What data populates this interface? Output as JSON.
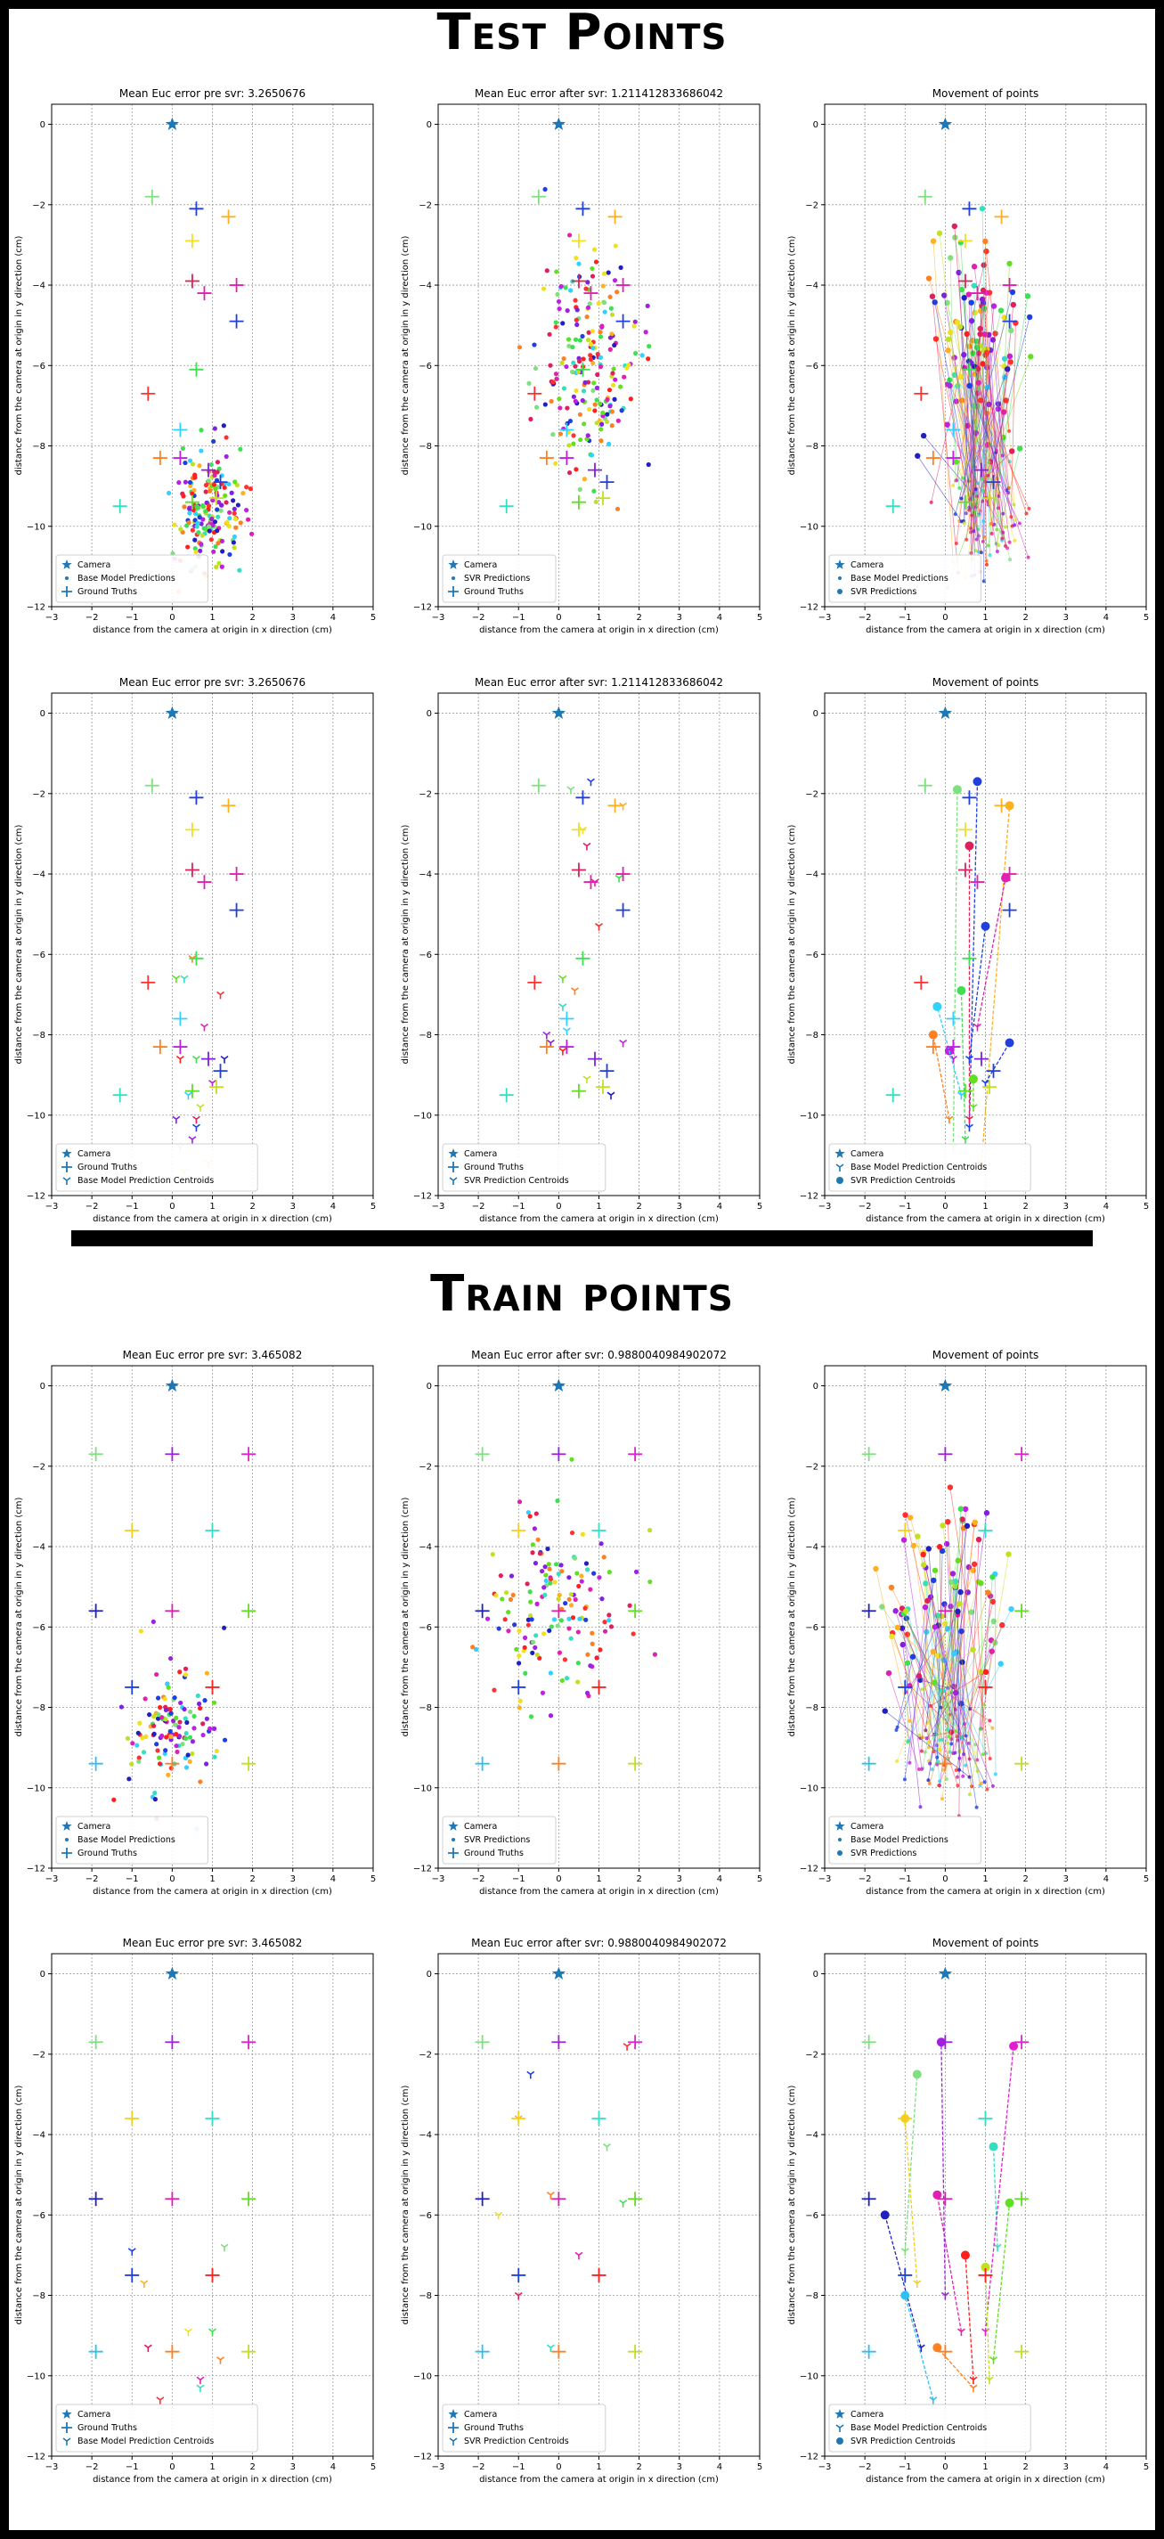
{
  "sections": [
    {
      "title": "Test Points"
    },
    {
      "title": "Train points"
    }
  ],
  "chart_data": [
    {
      "panel": "test-row1-col1",
      "type": "scatter",
      "title": "Mean Euc error pre svr: 3.2650676",
      "xlabel": "distance from the camera at origin in x direction (cm)",
      "ylabel": "distance from the camera at origin in y direction (cm)",
      "xlim": [
        -3,
        5
      ],
      "ylim": [
        -12,
        0.5
      ],
      "grid": true,
      "legend_placement": "lower-left",
      "legend": [
        "Camera",
        "Base Model Predictions",
        "Ground Truths"
      ],
      "camera": {
        "x": 0,
        "y": 0
      },
      "ground_truths": [
        {
          "x": 0.6,
          "y": -2.1,
          "color": "#1f3fe0"
        },
        {
          "x": 1.4,
          "y": -2.3,
          "color": "#ffb020"
        },
        {
          "x": -0.5,
          "y": -1.8,
          "color": "#7ee07e"
        },
        {
          "x": 0.5,
          "y": -2.9,
          "color": "#f0e020"
        },
        {
          "x": 0.5,
          "y": -3.9,
          "color": "#e0205a"
        },
        {
          "x": 0.8,
          "y": -4.2,
          "color": "#e020b0"
        },
        {
          "x": 1.6,
          "y": -4.0,
          "color": "#e020b0"
        },
        {
          "x": 1.6,
          "y": -4.9,
          "color": "#1f3fe0"
        },
        {
          "x": 0.6,
          "y": -6.1,
          "color": "#3ee050"
        },
        {
          "x": -0.6,
          "y": -6.7,
          "color": "#ff3030"
        },
        {
          "x": -0.3,
          "y": -8.3,
          "color": "#ff8020"
        },
        {
          "x": 1.2,
          "y": -8.9,
          "color": "#1f3fe0"
        },
        {
          "x": -1.3,
          "y": -9.5,
          "color": "#30e0c0"
        },
        {
          "x": 0.5,
          "y": -9.4,
          "color": "#60e020"
        },
        {
          "x": 1.1,
          "y": -9.3,
          "color": "#c0e020"
        },
        {
          "x": 0.2,
          "y": -8.3,
          "color": "#c020e0"
        },
        {
          "x": 0.2,
          "y": -7.6,
          "color": "#30d0ff"
        },
        {
          "x": 0.9,
          "y": -8.6,
          "color": "#8020e0"
        }
      ],
      "predictions": {
        "marker": "dot",
        "center": [
          0.9,
          -9.6
        ],
        "spread": [
          0.8,
          1.4
        ],
        "n": 190,
        "ymin": -12
      }
    },
    {
      "panel": "test-row1-col2",
      "type": "scatter",
      "title": "Mean Euc error after svr: 1.211412833686042",
      "xlabel": "distance from the camera at origin in x direction (cm)",
      "ylabel": "distance from the camera at origin in y direction (cm)",
      "xlim": [
        -3,
        5
      ],
      "ylim": [
        -12,
        0.5
      ],
      "grid": true,
      "legend_placement": "lower-left",
      "legend": [
        "Camera",
        "SVR Predictions",
        "Ground Truths"
      ],
      "camera": {
        "x": 0,
        "y": 0
      },
      "ground_truths_ref": 0,
      "predictions": {
        "marker": "dot",
        "center": [
          0.8,
          -5.8
        ],
        "spread": [
          1.1,
          2.6
        ],
        "n": 210,
        "ymin": -11
      }
    },
    {
      "panel": "test-row1-col3",
      "type": "scatter",
      "title": "Movement of points",
      "xlabel": "distance from the camera at origin in x direction (cm)",
      "ylabel": "distance from the camera at origin in y direction (cm)",
      "xlim": [
        -3,
        5
      ],
      "ylim": [
        -12,
        0.5
      ],
      "grid": true,
      "legend_placement": "lower-left",
      "legend": [
        "Camera",
        "Base Model Predictions",
        "SVR Predictions"
      ],
      "camera": {
        "x": 0,
        "y": 0
      },
      "ground_truths_ref": 0,
      "movement": {
        "from_center": [
          0.9,
          -9.6
        ],
        "from_spread": [
          0.8,
          1.4
        ],
        "to_center": [
          0.8,
          -5.4
        ],
        "to_spread": [
          1.1,
          2.6
        ],
        "n": 120
      }
    },
    {
      "panel": "test-row2-col1",
      "type": "scatter",
      "title": "Mean Euc error pre svr: 3.2650676",
      "xlabel": "distance from the camera at origin in x direction (cm)",
      "ylabel": "distance from the camera at origin in y direction (cm)",
      "xlim": [
        -3,
        5
      ],
      "ylim": [
        -12,
        0.5
      ],
      "grid": true,
      "legend_placement": "lower-left",
      "legend": [
        "Camera",
        "Ground Truths",
        "Base Model Prediction Centroids"
      ],
      "camera": {
        "x": 0,
        "y": 0
      },
      "ground_truths_ref": 0,
      "centroids": [
        {
          "x": 0.6,
          "y": -10.3
        },
        {
          "x": 0.9,
          "y": -11.2
        },
        {
          "x": 0.2,
          "y": -10.8
        },
        {
          "x": 0.3,
          "y": -11.4
        },
        {
          "x": 0.6,
          "y": -10.1
        },
        {
          "x": 0.8,
          "y": -7.8
        },
        {
          "x": 0.6,
          "y": -8.6
        },
        {
          "x": 1.2,
          "y": -7.0
        },
        {
          "x": 0.5,
          "y": -6.1
        },
        {
          "x": 0.3,
          "y": -6.6
        },
        {
          "x": 0.1,
          "y": -6.6
        },
        {
          "x": 0.7,
          "y": -9.8
        },
        {
          "x": 1.0,
          "y": -9.2
        },
        {
          "x": 0.4,
          "y": -9.5
        },
        {
          "x": 0.1,
          "y": -10.1
        },
        {
          "x": 0.5,
          "y": -10.6
        },
        {
          "x": 1.3,
          "y": -8.6
        },
        {
          "x": 0.2,
          "y": -8.6
        }
      ]
    },
    {
      "panel": "test-row2-col2",
      "type": "scatter",
      "title": "Mean Euc error after svr: 1.211412833686042",
      "xlabel": "distance from the camera at origin in x direction (cm)",
      "ylabel": "distance from the camera at origin in y direction (cm)",
      "xlim": [
        -3,
        5
      ],
      "ylim": [
        -12,
        0.5
      ],
      "grid": true,
      "legend_placement": "lower-left",
      "legend": [
        "Camera",
        "Ground Truths",
        "SVR Prediction Centroids"
      ],
      "camera": {
        "x": 0,
        "y": 0
      },
      "ground_truths_ref": 0,
      "centroids": [
        {
          "x": 0.8,
          "y": -1.7
        },
        {
          "x": 1.6,
          "y": -2.3
        },
        {
          "x": 0.3,
          "y": -1.9
        },
        {
          "x": 0.6,
          "y": -2.9
        },
        {
          "x": 0.7,
          "y": -3.3
        },
        {
          "x": 0.9,
          "y": -4.2
        },
        {
          "x": 1.5,
          "y": -4.1
        },
        {
          "x": 1.0,
          "y": -5.3
        },
        {
          "x": 0.4,
          "y": -6.9
        },
        {
          "x": 0.1,
          "y": -7.3
        },
        {
          "x": 0.1,
          "y": -6.6
        },
        {
          "x": 0.7,
          "y": -9.1
        },
        {
          "x": 1.6,
          "y": -8.2
        },
        {
          "x": 0.2,
          "y": -7.9
        },
        {
          "x": -0.2,
          "y": -8.2
        },
        {
          "x": -0.3,
          "y": -8.0
        },
        {
          "x": 1.3,
          "y": -9.5
        },
        {
          "x": 0.1,
          "y": -8.4
        }
      ]
    },
    {
      "panel": "test-row2-col3",
      "type": "scatter",
      "title": "Movement of points",
      "xlabel": "distance from the camera at origin in x direction (cm)",
      "ylabel": "distance from the camera at origin in y direction (cm)",
      "xlim": [
        -3,
        5
      ],
      "ylim": [
        -12,
        0.5
      ],
      "grid": true,
      "legend_placement": "lower-left",
      "legend": [
        "Camera",
        "Base Model Prediction Centroids",
        "SVR Prediction Centroids"
      ],
      "camera": {
        "x": 0,
        "y": 0
      },
      "ground_truths_ref": 0,
      "centroid_moves": [
        {
          "from": [
            0.6,
            -10.3
          ],
          "to": [
            0.8,
            -1.7
          ],
          "color": "#1f3fe0"
        },
        {
          "from": [
            0.9,
            -11.2
          ],
          "to": [
            1.6,
            -2.3
          ],
          "color": "#ffb020"
        },
        {
          "from": [
            0.2,
            -10.8
          ],
          "to": [
            0.3,
            -1.9
          ],
          "color": "#7ee07e"
        },
        {
          "from": [
            0.6,
            -10.1
          ],
          "to": [
            0.6,
            -3.3
          ],
          "color": "#e0205a"
        },
        {
          "from": [
            0.8,
            -7.8
          ],
          "to": [
            1.5,
            -4.1
          ],
          "color": "#e020b0"
        },
        {
          "from": [
            0.6,
            -8.6
          ],
          "to": [
            1.0,
            -5.3
          ],
          "color": "#1f3fe0"
        },
        {
          "from": [
            0.5,
            -10.6
          ],
          "to": [
            0.4,
            -6.9
          ],
          "color": "#3ee050"
        },
        {
          "from": [
            0.1,
            -10.1
          ],
          "to": [
            -0.3,
            -8.0
          ],
          "color": "#ff8020"
        },
        {
          "from": [
            1.0,
            -9.2
          ],
          "to": [
            1.6,
            -8.2
          ],
          "color": "#1f3fe0"
        },
        {
          "from": [
            0.2,
            -8.6
          ],
          "to": [
            0.1,
            -8.4
          ],
          "color": "#c020e0"
        },
        {
          "from": [
            0.4,
            -9.5
          ],
          "to": [
            -0.2,
            -7.3
          ],
          "color": "#30d0ff"
        },
        {
          "from": [
            0.7,
            -9.8
          ],
          "to": [
            0.7,
            -9.1
          ],
          "color": "#60e020"
        }
      ]
    },
    {
      "panel": "train-row1-col1",
      "type": "scatter",
      "title": "Mean Euc error pre svr: 3.465082",
      "xlabel": "distance from the camera at origin in x direction (cm)",
      "ylabel": "distance from the camera at origin in y direction (cm)",
      "xlim": [
        -3,
        5
      ],
      "ylim": [
        -12,
        0.5
      ],
      "grid": true,
      "legend_placement": "lower-left",
      "legend": [
        "Camera",
        "Base Model Predictions",
        "Ground Truths"
      ],
      "camera": {
        "x": 0,
        "y": 0
      },
      "ground_truths": [
        {
          "x": -1.9,
          "y": -1.7,
          "color": "#7ee07e"
        },
        {
          "x": 0.0,
          "y": -1.7,
          "color": "#a020e0"
        },
        {
          "x": 1.9,
          "y": -1.7,
          "color": "#e020d0"
        },
        {
          "x": -1.0,
          "y": -3.6,
          "color": "#f0d020"
        },
        {
          "x": 1.0,
          "y": -3.6,
          "color": "#30e0c0"
        },
        {
          "x": -1.9,
          "y": -5.6,
          "color": "#2020c0"
        },
        {
          "x": 0.0,
          "y": -5.6,
          "color": "#e020b0"
        },
        {
          "x": 1.9,
          "y": -5.6,
          "color": "#60e020"
        },
        {
          "x": -1.0,
          "y": -7.5,
          "color": "#2040e0"
        },
        {
          "x": 1.0,
          "y": -7.5,
          "color": "#ff2020"
        },
        {
          "x": -1.9,
          "y": -9.4,
          "color": "#30c0f0"
        },
        {
          "x": 0.0,
          "y": -9.4,
          "color": "#ff8020"
        },
        {
          "x": 1.9,
          "y": -9.4,
          "color": "#c0e020"
        }
      ],
      "predictions": {
        "marker": "dot",
        "center": [
          0.0,
          -8.5
        ],
        "spread": [
          1.1,
          1.5
        ],
        "n": 130,
        "ymin": -12
      }
    },
    {
      "panel": "train-row1-col2",
      "type": "scatter",
      "title": "Mean Euc error after svr: 0.9880040984902072",
      "xlabel": "distance from the camera at origin in x direction (cm)",
      "ylabel": "distance from the camera at origin in y direction (cm)",
      "xlim": [
        -3,
        5
      ],
      "ylim": [
        -12,
        0.5
      ],
      "grid": true,
      "legend_placement": "lower-left",
      "legend": [
        "Camera",
        "SVR Predictions",
        "Ground Truths"
      ],
      "camera": {
        "x": 0,
        "y": 0
      },
      "ground_truths_ref": 6,
      "predictions": {
        "marker": "dot",
        "center": [
          0.0,
          -5.5
        ],
        "spread": [
          1.6,
          2.4
        ],
        "n": 150,
        "ymin": -11
      }
    },
    {
      "panel": "train-row1-col3",
      "type": "scatter",
      "title": "Movement of points",
      "xlabel": "distance from the camera at origin in x direction (cm)",
      "ylabel": "distance from the camera at origin in y direction (cm)",
      "xlim": [
        -3,
        5
      ],
      "ylim": [
        -12,
        0.5
      ],
      "grid": true,
      "legend_placement": "lower-left",
      "legend": [
        "Camera",
        "Base Model Predictions",
        "SVR Predictions"
      ],
      "camera": {
        "x": 0,
        "y": 0
      },
      "ground_truths_ref": 6,
      "movement": {
        "from_center": [
          0.0,
          -9.0
        ],
        "from_spread": [
          1.0,
          1.3
        ],
        "to_center": [
          0.0,
          -5.2
        ],
        "to_spread": [
          1.7,
          2.3
        ],
        "n": 110
      }
    },
    {
      "panel": "train-row2-col1",
      "type": "scatter",
      "title": "Mean Euc error pre svr: 3.465082",
      "xlabel": "distance from the camera at origin in x direction (cm)",
      "ylabel": "distance from the camera at origin in y direction (cm)",
      "xlim": [
        -3,
        5
      ],
      "ylim": [
        -12,
        0.5
      ],
      "grid": true,
      "legend_placement": "lower-left",
      "legend": [
        "Camera",
        "Ground Truths",
        "Base Model Prediction Centroids"
      ],
      "camera": {
        "x": 0,
        "y": 0
      },
      "ground_truths_ref": 6,
      "centroids": [
        {
          "x": -1.0,
          "y": -6.9
        },
        {
          "x": -0.7,
          "y": -7.7
        },
        {
          "x": 1.3,
          "y": -6.8
        },
        {
          "x": 0.4,
          "y": -8.9
        },
        {
          "x": -0.6,
          "y": -9.3
        },
        {
          "x": 0.7,
          "y": -10.1
        },
        {
          "x": 1.0,
          "y": -8.9
        },
        {
          "x": -0.3,
          "y": -10.6
        },
        {
          "x": 1.2,
          "y": -9.6
        },
        {
          "x": 0.7,
          "y": -10.3
        }
      ]
    },
    {
      "panel": "train-row2-col2",
      "type": "scatter",
      "title": "Mean Euc error after svr: 0.9880040984902072",
      "xlabel": "distance from the camera at origin in x direction (cm)",
      "ylabel": "distance from the camera at origin in y direction (cm)",
      "xlim": [
        -3,
        5
      ],
      "ylim": [
        -12,
        0.5
      ],
      "grid": true,
      "legend_placement": "lower-left",
      "legend": [
        "Camera",
        "Ground Truths",
        "SVR Prediction Centroids"
      ],
      "camera": {
        "x": 0,
        "y": 0
      },
      "ground_truths_ref": 6,
      "centroids": [
        {
          "x": -0.7,
          "y": -2.5
        },
        {
          "x": -1.0,
          "y": -3.6
        },
        {
          "x": 1.2,
          "y": -4.3
        },
        {
          "x": -1.5,
          "y": -6.0
        },
        {
          "x": -1.0,
          "y": -8.0
        },
        {
          "x": 0.5,
          "y": -7.0
        },
        {
          "x": 1.6,
          "y": -5.7
        },
        {
          "x": 1.7,
          "y": -1.8
        },
        {
          "x": -0.2,
          "y": -5.5
        },
        {
          "x": -0.2,
          "y": -9.3
        }
      ]
    },
    {
      "panel": "train-row2-col3",
      "type": "scatter",
      "title": "Movement of points",
      "xlabel": "distance from the camera at origin in x direction (cm)",
      "ylabel": "distance from the camera at origin in y direction (cm)",
      "xlim": [
        -3,
        5
      ],
      "ylim": [
        -12,
        0.5
      ],
      "grid": true,
      "legend_placement": "lower-left",
      "legend": [
        "Camera",
        "Base Model Prediction Centroids",
        "SVR Prediction Centroids"
      ],
      "camera": {
        "x": 0,
        "y": 0
      },
      "ground_truths_ref": 6,
      "centroid_moves": [
        {
          "from": [
            -1.0,
            -6.9
          ],
          "to": [
            -0.7,
            -2.5
          ],
          "color": "#7ee07e"
        },
        {
          "from": [
            -0.7,
            -7.7
          ],
          "to": [
            -1.0,
            -3.6
          ],
          "color": "#f0d020"
        },
        {
          "from": [
            1.3,
            -6.8
          ],
          "to": [
            1.2,
            -4.3
          ],
          "color": "#30e0c0"
        },
        {
          "from": [
            -0.6,
            -9.3
          ],
          "to": [
            -1.5,
            -6.0
          ],
          "color": "#2020c0"
        },
        {
          "from": [
            -0.3,
            -10.6
          ],
          "to": [
            -1.0,
            -8.0
          ],
          "color": "#30c0f0"
        },
        {
          "from": [
            0.7,
            -10.1
          ],
          "to": [
            0.5,
            -7.0
          ],
          "color": "#ff2020"
        },
        {
          "from": [
            1.2,
            -9.6
          ],
          "to": [
            1.6,
            -5.7
          ],
          "color": "#60e020"
        },
        {
          "from": [
            1.0,
            -8.9
          ],
          "to": [
            1.7,
            -1.8
          ],
          "color": "#e020d0"
        },
        {
          "from": [
            0.4,
            -8.9
          ],
          "to": [
            -0.2,
            -5.5
          ],
          "color": "#e020b0"
        },
        {
          "from": [
            0.7,
            -10.3
          ],
          "to": [
            -0.2,
            -9.3
          ],
          "color": "#ff8020"
        },
        {
          "from": [
            0.0,
            -8.0
          ],
          "to": [
            -0.1,
            -1.7
          ],
          "color": "#a020e0"
        },
        {
          "from": [
            1.1,
            -10.1
          ],
          "to": [
            1.0,
            -7.3
          ],
          "color": "#c0e020"
        }
      ]
    }
  ]
}
